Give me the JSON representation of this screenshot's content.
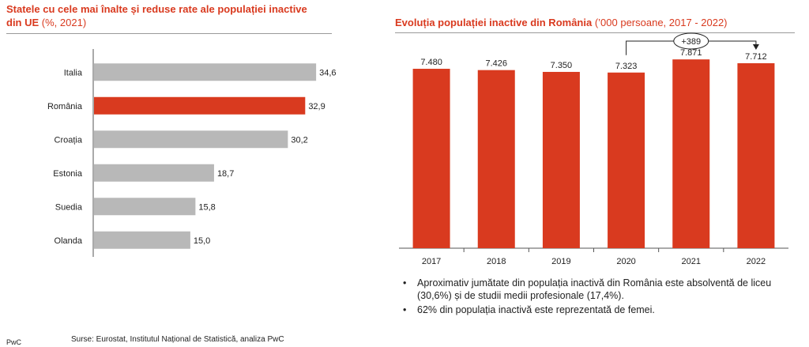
{
  "left_chart": {
    "title_bold": "Statele cu cele mai înalte și reduse rate ale populației inactive din UE",
    "title_note": " (%, 2021)"
  },
  "right_chart": {
    "title_bold": "Evoluția populației inactive din România",
    "title_note": " (’000 persoane, 2017 - 2022)",
    "change_label": "+389"
  },
  "bullets": [
    "Aproximativ jumătate din populația inactivă din România este absolventă de liceu (30,6%) și de studii medii profesionale (17,4%).",
    "62% din populația inactivă este reprezentată de femei."
  ],
  "bullet_symbol": "•",
  "source": "Surse: Eurostat, Institutul Național de Statistică, analiza PwC",
  "footer_brand": "PwC",
  "colors": {
    "accent": "#d93a1f",
    "gray_bar": "#b8b8b8"
  },
  "chart_data": [
    {
      "type": "bar",
      "orientation": "horizontal",
      "categories": [
        "Italia",
        "România",
        "Croația",
        "Estonia",
        "Suedia",
        "Olanda"
      ],
      "values": [
        34.6,
        32.9,
        30.2,
        18.7,
        15.8,
        15.0
      ],
      "value_labels": [
        "34,6",
        "32,9",
        "30,2",
        "18,7",
        "15,8",
        "15,0"
      ],
      "highlight": "România",
      "xlim": [
        0,
        40
      ],
      "grid": false,
      "legend": "none"
    },
    {
      "type": "bar",
      "orientation": "vertical",
      "categories": [
        "2017",
        "2018",
        "2019",
        "2020",
        "2021",
        "2022"
      ],
      "values": [
        7480,
        7426,
        7350,
        7323,
        7871,
        7712
      ],
      "value_labels": [
        "7.480",
        "7.426",
        "7.350",
        "7.323",
        "7.871",
        "7.712"
      ],
      "ylim": [
        0,
        8700
      ],
      "grid": false,
      "legend": "none",
      "annotation": {
        "from": "2020",
        "to": "2022",
        "label": "+389"
      }
    }
  ]
}
